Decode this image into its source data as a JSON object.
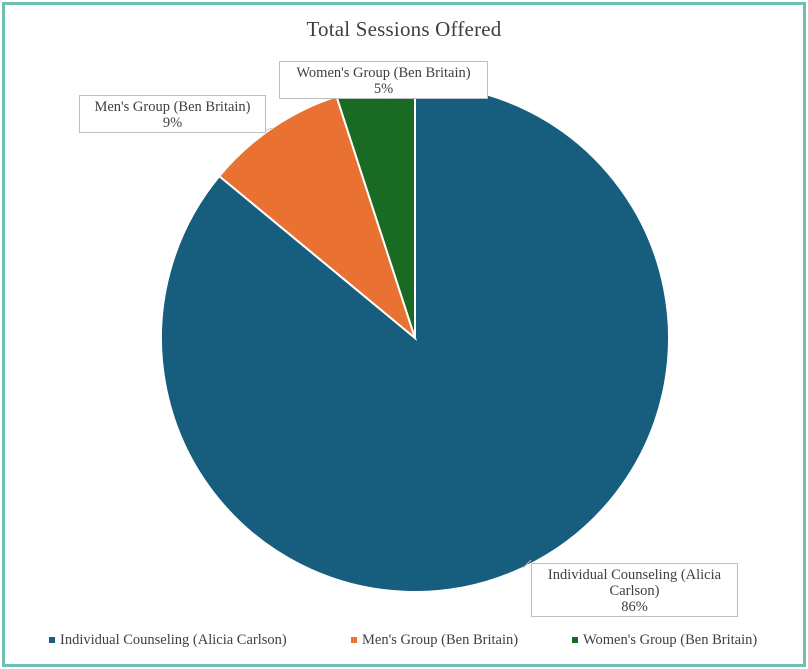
{
  "chart_data": {
    "type": "pie",
    "title": "Total Sessions Offered",
    "slices": [
      {
        "name": "Individual Counseling (Alicia Carlson)",
        "label_lines": [
          "Individual Counseling (Alicia",
          "Carlson)"
        ],
        "value": 86,
        "value_label": "86%",
        "color": "#175e7e"
      },
      {
        "name": "Men's Group (Ben Britain)",
        "label_lines": [
          "Men's Group (Ben Britain)"
        ],
        "value": 9,
        "value_label": "9%",
        "color": "#e97132"
      },
      {
        "name": "Women's Group (Ben Britain)",
        "label_lines": [
          "Women's Group (Ben Britain)"
        ],
        "value": 5,
        "value_label": "5%",
        "color": "#196b24"
      }
    ],
    "legend": {
      "position": "bottom",
      "entries": [
        "Individual Counseling (Alicia Carlson)",
        "Men's Group (Ben Britain)",
        "Women's Group (Ben Britain)"
      ]
    }
  },
  "frame_color": "#6fbfb3"
}
